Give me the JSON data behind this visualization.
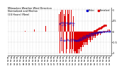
{
  "title": "Milwaukee Weather Wind Direction\nNormalized and Median\n(24 Hours) (New)",
  "bg_color": "#ffffff",
  "plot_bg_color": "#ffffff",
  "grid_color": "#bbbbbb",
  "bar_color": "#dd0000",
  "median_color": "#0000cc",
  "ylim": [
    -1.1,
    1.1
  ],
  "legend_labels": [
    "Median",
    "Normalized"
  ],
  "legend_colors": [
    "#0000cc",
    "#dd0000"
  ],
  "bar_data": [
    0.0,
    0.0,
    0.0,
    0.0,
    0.0,
    0.0,
    0.0,
    0.0,
    0.0,
    0.0,
    0.0,
    0.0,
    0.0,
    0.0,
    0.0,
    0.0,
    0.0,
    0.0,
    0.0,
    0.0,
    0.0,
    0.0,
    0.0,
    0.0,
    0.0,
    0.0,
    0.0,
    0.0,
    0.0,
    0.0,
    0.0,
    0.0,
    0.0,
    0.02,
    -0.02,
    0.0,
    0.0,
    0.0,
    0.0,
    0.0,
    0.0,
    0.0,
    0.0,
    0.0,
    0.0,
    0.0,
    0.0,
    0.0,
    0.0,
    0.0,
    0.0,
    0.1,
    -0.05,
    0.0,
    0.0,
    0.0,
    0.0,
    0.0,
    0.0,
    0.0,
    0.0,
    0.0,
    0.0,
    0.0,
    0.0,
    0.0,
    0.0,
    0.0,
    0.0,
    0.0,
    0.0,
    0.0,
    0.0,
    0.25,
    0.0,
    0.0,
    0.0,
    0.0,
    0.0,
    0.0,
    0.0,
    0.0,
    0.0,
    0.0,
    0.0,
    0.0,
    0.0,
    0.0,
    0.0,
    0.0,
    0.0,
    0.0,
    0.0,
    0.0,
    0.0,
    0.0,
    0.0,
    0.0,
    0.0,
    0.0,
    0.8,
    -1.0,
    0.9,
    -0.7,
    1.0,
    -0.9,
    0.7,
    1.0,
    -1.0,
    0.8,
    -0.9,
    0.7,
    1.0,
    -1.0,
    0.9,
    -0.8,
    1.0,
    -0.9,
    0.8,
    1.0,
    -1.0,
    0.9,
    -0.8,
    1.0,
    -1.0,
    0.9,
    -0.8,
    0.7,
    1.0,
    -0.9,
    -1.0,
    -0.9,
    -1.0,
    -1.0,
    -1.0,
    -0.9,
    -1.0,
    -0.8,
    -1.0,
    -0.9,
    -0.8,
    -0.7,
    -0.9,
    -0.8,
    -0.7,
    -0.6,
    -0.8,
    -0.7,
    -0.5,
    -0.6,
    -0.7,
    -0.5,
    -0.6,
    -0.4,
    -0.5,
    -0.6,
    -0.4,
    -0.5,
    -0.3,
    -0.4,
    -0.5,
    -0.3,
    -0.4,
    -0.2,
    -0.3,
    -0.4,
    -0.2,
    -0.3,
    -0.1,
    -0.2,
    -0.3,
    -0.1,
    -0.2,
    -0.1,
    -0.2,
    -0.1,
    -0.15,
    -0.1,
    -0.05,
    -0.1,
    -0.15,
    -0.05,
    -0.1,
    -0.05,
    0.0,
    -0.05,
    0.0,
    0.05,
    -0.05,
    0.0,
    0.05,
    0.0,
    0.05,
    0.0,
    0.05,
    0.1,
    0.0,
    0.05,
    0.1,
    0.05
  ],
  "bar_data2": [
    0.0,
    0.0,
    0.0,
    0.0,
    0.0,
    0.0,
    0.0,
    0.0,
    0.0,
    0.0,
    0.0,
    0.0,
    0.0,
    0.0,
    0.0,
    0.0,
    0.0,
    0.0,
    0.0,
    0.0,
    0.0,
    0.0,
    0.0,
    0.0,
    0.0,
    0.0,
    0.0,
    0.0,
    0.0,
    0.0,
    0.0,
    0.0,
    0.0,
    0.0,
    0.0,
    0.0,
    0.0,
    0.0,
    0.0,
    0.0,
    0.0,
    0.0,
    0.0,
    0.0,
    0.0,
    0.0,
    0.0,
    0.0,
    0.0,
    0.0,
    0.0,
    0.0,
    0.0,
    0.0,
    0.0,
    0.0,
    0.0,
    0.0,
    0.0,
    0.0,
    0.0,
    0.0,
    0.0,
    0.0,
    0.0,
    0.0,
    0.0,
    0.0,
    0.0,
    0.0,
    0.0,
    0.0,
    0.0,
    0.0,
    0.0,
    0.0,
    0.0,
    0.0,
    0.0,
    0.0,
    0.0,
    0.0,
    0.0,
    0.0,
    0.0,
    0.0,
    0.0,
    0.0,
    0.0,
    0.0,
    0.0,
    0.0,
    0.0,
    0.0,
    0.0,
    0.0,
    0.0,
    0.0,
    0.0,
    0.0,
    0.35,
    -0.4,
    0.38,
    -0.3,
    0.42,
    -0.38,
    0.3,
    0.42,
    -0.42,
    0.35,
    -0.38,
    0.3,
    0.42,
    -0.42,
    0.38,
    -0.35,
    0.42,
    -0.38,
    0.35,
    0.4,
    -0.42,
    0.38,
    -0.35,
    0.42,
    -0.42,
    0.38,
    -0.35,
    0.3,
    0.4,
    -0.38,
    -0.42,
    -0.38,
    -0.42,
    -0.42,
    -0.42,
    -0.38,
    -0.42,
    -0.35,
    -0.42,
    -0.38,
    -0.35,
    -0.3,
    -0.38,
    -0.35,
    -0.3,
    -0.25,
    -0.35,
    -0.3,
    -0.2,
    -0.25,
    -0.3,
    -0.2,
    -0.25,
    -0.15,
    -0.2,
    -0.25,
    -0.15,
    -0.2,
    -0.1,
    -0.15,
    -0.2,
    -0.1,
    -0.15,
    -0.05,
    -0.1,
    -0.15,
    -0.05,
    -0.1,
    -0.02,
    -0.05,
    -0.1,
    -0.02,
    -0.05,
    -0.02,
    -0.05,
    -0.02,
    -0.04,
    -0.02,
    -0.01,
    -0.02,
    -0.04,
    -0.01,
    -0.02,
    -0.01,
    0.0,
    -0.01,
    0.0,
    0.01,
    -0.01,
    0.0,
    0.01,
    0.0,
    0.01,
    0.0,
    0.01,
    0.02,
    0.0,
    0.01,
    0.02,
    0.01
  ],
  "scatter_x": [
    145,
    148,
    151,
    154,
    156,
    159,
    162,
    165,
    168,
    170,
    172,
    174,
    176,
    178,
    180,
    182,
    184,
    186,
    188,
    190
  ],
  "scatter_y": [
    -0.25,
    -0.2,
    -0.18,
    -0.15,
    -0.1,
    -0.08,
    -0.05,
    -0.03,
    0.02,
    0.05,
    0.08,
    0.1,
    0.12,
    0.15,
    0.18,
    0.2,
    0.22,
    0.25,
    0.28,
    0.3
  ],
  "yticks": [
    -1.0,
    -0.5,
    0.0,
    0.5,
    1.0
  ],
  "ytick_labels": [
    "-1",
    "-0.5",
    "0",
    "0.5",
    "1"
  ]
}
